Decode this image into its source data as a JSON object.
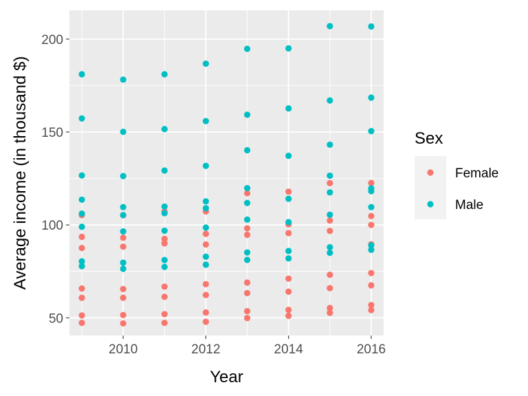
{
  "chart_data": {
    "type": "scatter",
    "title": "",
    "xlabel": "Year",
    "ylabel": "Average income (in thousand $)",
    "xlim": [
      2008.7,
      2016.3
    ],
    "ylim": [
      40.5,
      215.5
    ],
    "x_ticks": [
      2010,
      2012,
      2014,
      2016
    ],
    "y_ticks": [
      50,
      100,
      150,
      200
    ],
    "grid": true,
    "legend": {
      "title": "Sex",
      "position": "right",
      "entries": [
        "Female",
        "Male"
      ]
    },
    "series": [
      {
        "name": "Female",
        "color": "#F8766D",
        "points": [
          [
            2009,
            47.3
          ],
          [
            2009,
            51.3
          ],
          [
            2009,
            60.8
          ],
          [
            2009,
            65.8
          ],
          [
            2009,
            87.6
          ],
          [
            2009,
            93.6
          ],
          [
            2009,
            105.3
          ],
          [
            2010,
            47.0
          ],
          [
            2010,
            51.5
          ],
          [
            2010,
            60.8
          ],
          [
            2010,
            65.5
          ],
          [
            2010,
            88.3
          ],
          [
            2010,
            93.1
          ],
          [
            2010,
            105.2
          ],
          [
            2011,
            47.3
          ],
          [
            2011,
            52.0
          ],
          [
            2011,
            61.3
          ],
          [
            2011,
            66.8
          ],
          [
            2011,
            90.1
          ],
          [
            2011,
            92.5
          ],
          [
            2011,
            107.3
          ],
          [
            2012,
            47.9
          ],
          [
            2012,
            52.9
          ],
          [
            2012,
            62.3
          ],
          [
            2012,
            68.1
          ],
          [
            2012,
            89.5
          ],
          [
            2012,
            95.2
          ],
          [
            2012,
            107.3
          ],
          [
            2013,
            49.9
          ],
          [
            2013,
            53.6
          ],
          [
            2013,
            63.3
          ],
          [
            2013,
            69.0
          ],
          [
            2013,
            94.7
          ],
          [
            2013,
            98.2
          ],
          [
            2013,
            117.1
          ],
          [
            2014,
            51.1
          ],
          [
            2014,
            54.3
          ],
          [
            2014,
            64.1
          ],
          [
            2014,
            71.1
          ],
          [
            2014,
            95.6
          ],
          [
            2014,
            100.3
          ],
          [
            2014,
            117.9
          ],
          [
            2015,
            52.7
          ],
          [
            2015,
            55.3
          ],
          [
            2015,
            66.0
          ],
          [
            2015,
            73.2
          ],
          [
            2015,
            96.8
          ],
          [
            2015,
            102.4
          ],
          [
            2015,
            122.5
          ],
          [
            2016,
            54.2
          ],
          [
            2016,
            56.9
          ],
          [
            2016,
            67.5
          ],
          [
            2016,
            74.1
          ],
          [
            2016,
            89.6
          ],
          [
            2016,
            100.0
          ],
          [
            2016,
            104.8
          ],
          [
            2016,
            122.6
          ]
        ]
      },
      {
        "name": "Male",
        "color": "#00BFC4",
        "points": [
          [
            2009,
            77.8
          ],
          [
            2009,
            80.4
          ],
          [
            2009,
            99.0
          ],
          [
            2009,
            106.1
          ],
          [
            2009,
            113.6
          ],
          [
            2009,
            126.6
          ],
          [
            2009,
            157.3
          ],
          [
            2009,
            181.1
          ],
          [
            2010,
            76.4
          ],
          [
            2010,
            79.7
          ],
          [
            2010,
            96.5
          ],
          [
            2010,
            105.3
          ],
          [
            2010,
            109.6
          ],
          [
            2010,
            126.3
          ],
          [
            2010,
            150.1
          ],
          [
            2010,
            178.2
          ],
          [
            2011,
            77.4
          ],
          [
            2011,
            81.1
          ],
          [
            2011,
            96.9
          ],
          [
            2011,
            106.3
          ],
          [
            2011,
            109.9
          ],
          [
            2011,
            129.3
          ],
          [
            2011,
            151.6
          ],
          [
            2011,
            181.1
          ],
          [
            2012,
            78.6
          ],
          [
            2012,
            82.9
          ],
          [
            2012,
            98.6
          ],
          [
            2012,
            109.0
          ],
          [
            2012,
            112.7
          ],
          [
            2012,
            131.8
          ],
          [
            2012,
            155.9
          ],
          [
            2012,
            186.8
          ],
          [
            2013,
            81.2
          ],
          [
            2013,
            85.2
          ],
          [
            2013,
            102.9
          ],
          [
            2013,
            111.8
          ],
          [
            2013,
            119.8
          ],
          [
            2013,
            140.2
          ],
          [
            2013,
            159.3
          ],
          [
            2013,
            194.8
          ],
          [
            2014,
            82.0
          ],
          [
            2014,
            86.0
          ],
          [
            2014,
            101.5
          ],
          [
            2014,
            114.1
          ],
          [
            2014,
            137.2
          ],
          [
            2014,
            162.7
          ],
          [
            2014,
            195.0
          ],
          [
            2015,
            85.0
          ],
          [
            2015,
            88.0
          ],
          [
            2015,
            105.5
          ],
          [
            2015,
            117.5
          ],
          [
            2015,
            126.5
          ],
          [
            2015,
            143.2
          ],
          [
            2015,
            167.0
          ],
          [
            2015,
            207.0
          ],
          [
            2016,
            86.6
          ],
          [
            2016,
            89.0
          ],
          [
            2016,
            109.6
          ],
          [
            2016,
            118.2
          ],
          [
            2016,
            119.7
          ],
          [
            2016,
            150.5
          ],
          [
            2016,
            168.5
          ],
          [
            2016,
            206.8
          ]
        ]
      }
    ]
  }
}
